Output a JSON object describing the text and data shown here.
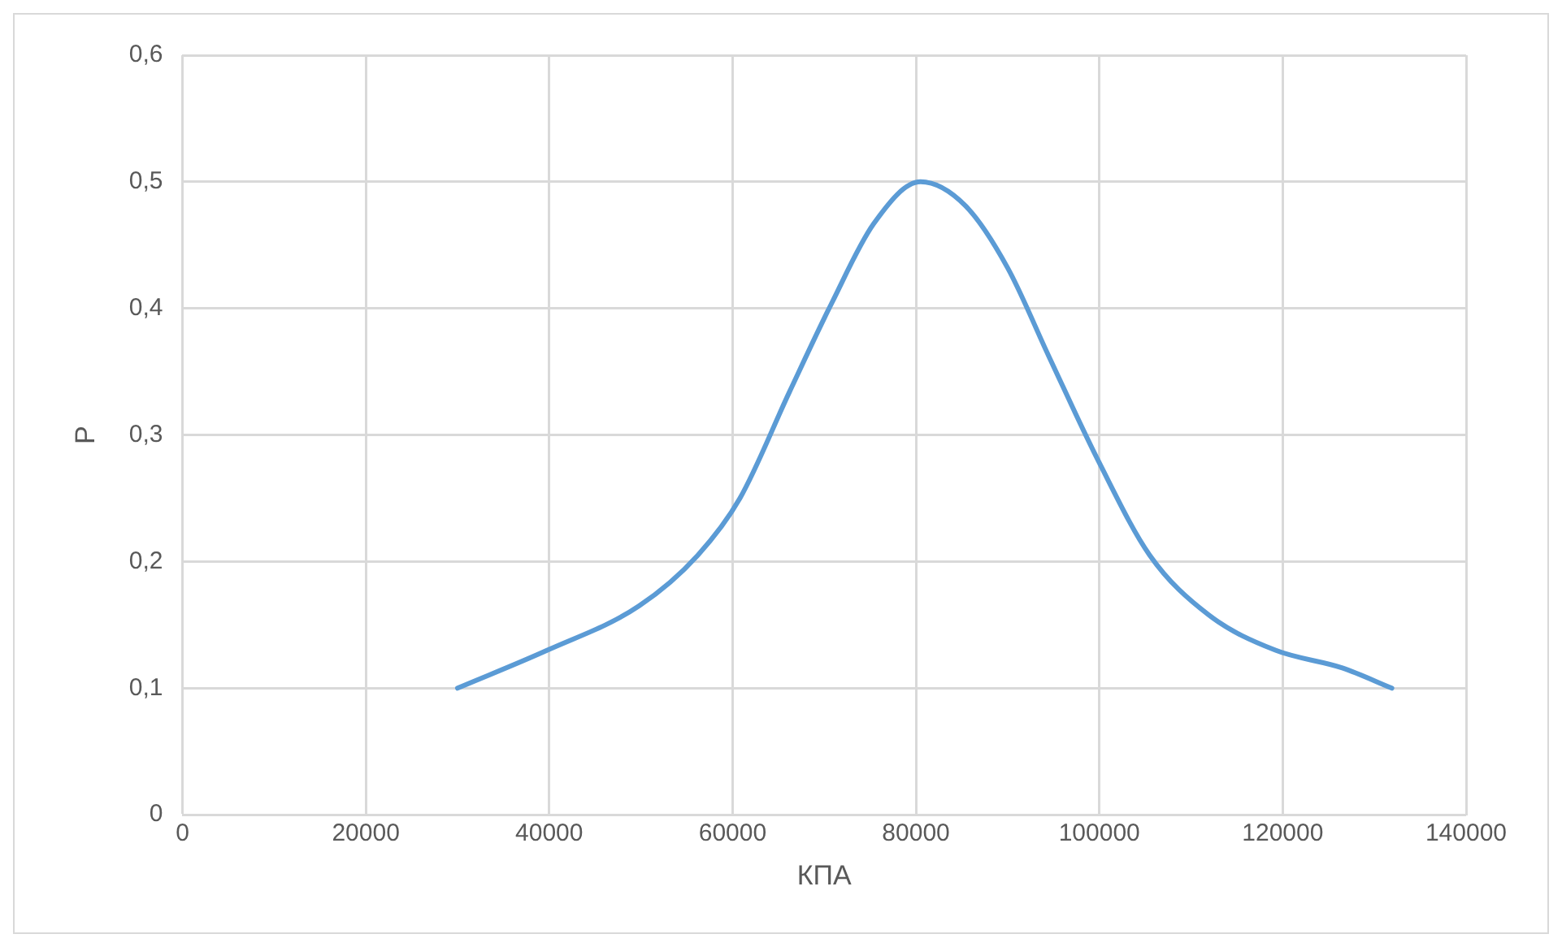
{
  "chart_data": {
    "type": "line",
    "xlabel": "КПА",
    "ylabel": "P",
    "series": [
      {
        "color": "#5b9bd5",
        "x": [
          30000,
          39800,
          49800,
          56200,
          60800,
          66200,
          70800,
          75400,
          80500,
          85400,
          90000,
          94500,
          100000,
          105500,
          111900,
          119200,
          126500,
          131900
        ],
        "values": [
          0.1,
          0.13,
          0.165,
          0.205,
          0.25,
          0.334,
          0.404,
          0.467,
          0.5,
          0.481,
          0.432,
          0.362,
          0.278,
          0.205,
          0.158,
          0.13,
          0.116,
          0.1
        ]
      }
    ],
    "xlim": [
      0,
      140000
    ],
    "xticks": [
      0,
      20000,
      40000,
      60000,
      80000,
      100000,
      120000,
      140000
    ],
    "ylim": [
      0,
      0.6
    ],
    "yticks": [
      0,
      {
        "value": 0.1,
        "label": "0,1"
      },
      {
        "value": 0.2,
        "label": "0,2"
      },
      {
        "value": 0.3,
        "label": "0,3"
      },
      {
        "value": 0.4,
        "label": "0,4"
      },
      {
        "value": 0.5,
        "label": "0,5"
      },
      {
        "value": 0.6,
        "label": "0,6"
      }
    ],
    "grid": true,
    "legend": false,
    "marker": "none",
    "line_style": "solid"
  }
}
